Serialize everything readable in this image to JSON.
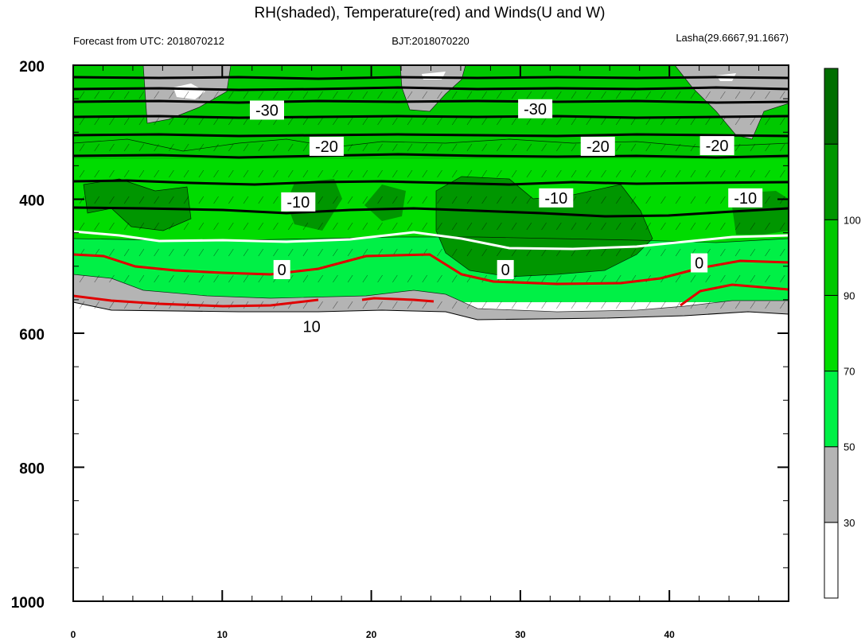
{
  "chart_data": {
    "type": "contour",
    "title": "RH(shaded), Temperature(red) and Winds(U and W)",
    "subtitle_left": "Forecast from UTC: 2018070212",
    "subtitle_center": "BJT:2018070220",
    "subtitle_right": "Lasha(29.6667,91.1667)",
    "x_ticks": [
      0,
      10,
      20,
      30,
      40
    ],
    "xlim": [
      0,
      48
    ],
    "y_ticks": [
      200,
      400,
      600,
      800,
      1000
    ],
    "ylim": [
      1000,
      200
    ],
    "colorbar": {
      "levels": [
        30,
        50,
        70,
        90,
        100
      ],
      "labels": [
        "30",
        "50",
        "70",
        "90",
        "100"
      ],
      "colors": [
        "#ffffff",
        "#b4b4b4",
        "#00f046",
        "#00dc00",
        "#00c800",
        "#009600",
        "#006e00"
      ]
    },
    "contour_labels": [
      {
        "text": "-30",
        "x": 13,
        "p": 267
      },
      {
        "text": "-30",
        "x": 31,
        "p": 265
      },
      {
        "text": "-20",
        "x": 17,
        "p": 321
      },
      {
        "text": "-20",
        "x": 35.2,
        "p": 321
      },
      {
        "text": "-20",
        "x": 43.2,
        "p": 320
      },
      {
        "text": "-10",
        "x": 15.1,
        "p": 404
      },
      {
        "text": "-10",
        "x": 32.4,
        "p": 398
      },
      {
        "text": "-10",
        "x": 45.1,
        "p": 398
      },
      {
        "text": "0",
        "x": 14,
        "p": 505
      },
      {
        "text": "0",
        "x": 29,
        "p": 505
      },
      {
        "text": "0",
        "x": 42,
        "p": 495
      },
      {
        "text": "10",
        "x": 16,
        "p": 590
      }
    ]
  }
}
